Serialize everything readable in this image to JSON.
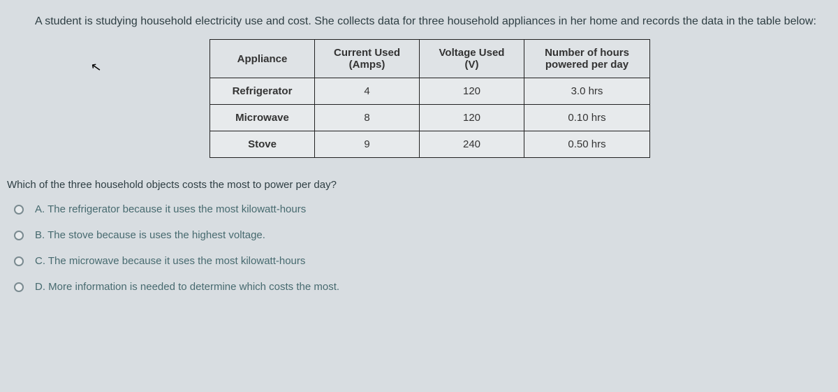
{
  "intro": "A student is studying household electricity use and cost. She collects data for three household appliances in her home and records the data in the table below:",
  "table": {
    "headers": {
      "appliance": "Appliance",
      "current": "Current Used",
      "current_sub": "(Amps)",
      "voltage": "Voltage Used",
      "voltage_sub": "(V)",
      "hours": "Number of hours",
      "hours_sub": "powered per day"
    },
    "rows": [
      {
        "appliance": "Refrigerator",
        "current": "4",
        "voltage": "120",
        "hours": "3.0 hrs"
      },
      {
        "appliance": "Microwave",
        "current": "8",
        "voltage": "120",
        "hours": "0.10 hrs"
      },
      {
        "appliance": "Stove",
        "current": "9",
        "voltage": "240",
        "hours": "0.50 hrs"
      }
    ]
  },
  "question": "Which of the three household objects costs the most to power per day?",
  "options": [
    "A.  The refrigerator because it uses the most kilowatt-hours",
    "B.  The stove because is uses the highest voltage.",
    "C.  The microwave because it uses the most kilowatt-hours",
    "D.  More information is needed to determine which costs the most."
  ],
  "colors": {
    "page_bg": "#d8dde1",
    "text": "#2e3e43",
    "option_text": "#476a6f",
    "border": "#222222",
    "table_bg": "#e7eaec",
    "header_bg": "#dfe3e6",
    "radio_border": "#7a8a90"
  }
}
